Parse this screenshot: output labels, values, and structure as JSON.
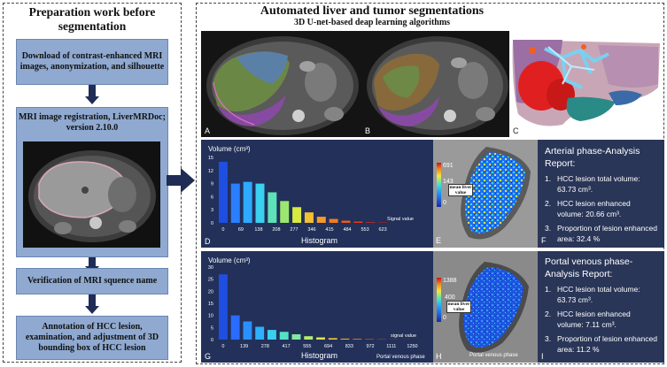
{
  "left": {
    "title": "Preparation work before segmentation",
    "steps": [
      "Download of contrast-enhanced MRI images, anonymization, and silhouette",
      "MRI image registration, LiverMRDoc; version 2.10.0",
      "Verification of MRI squence name",
      "Annotation of HCC lesion, examination, and adjustment of 3D bounding box of HCC lesion"
    ]
  },
  "right": {
    "title": "Automated liver and tumor segmentations",
    "subtitle": "3D U-net-based deap learning algorithms",
    "scan_labels": [
      "A",
      "B",
      "C"
    ]
  },
  "chart_data": [
    {
      "type": "bar",
      "panel": "D",
      "ylabel": "Volume (cm³)",
      "xlabel": "Histogram",
      "x_axis_note": "Signal value",
      "ylim": [
        0,
        15
      ],
      "yticks": [
        "0",
        "3",
        "6",
        "9",
        "12",
        "15"
      ],
      "xtick_labels": [
        "0",
        "69",
        "138",
        "208",
        "277",
        "346",
        "415",
        "484",
        "553",
        "623"
      ],
      "values": [
        14,
        9,
        9.4,
        9,
        7,
        5,
        3.6,
        2.4,
        1.4,
        0.9,
        0.5,
        0.3,
        0.15,
        0.1
      ],
      "colors": [
        "#1f4fe0",
        "#2a7fff",
        "#2eaaff",
        "#3ad0f0",
        "#5ee0b8",
        "#9ae870",
        "#d8ea40",
        "#f2c030",
        "#f59a26",
        "#f27a22",
        "#ee5a1e",
        "#e83c1a",
        "#dd2a16",
        "#cc1a12"
      ]
    },
    {
      "type": "bar",
      "panel": "G",
      "ylabel": "Volume (cm³)",
      "xlabel": "Histogram",
      "x_axis_note": "signal value",
      "footer_note": "Portal venous phase",
      "ylim": [
        0,
        30
      ],
      "yticks": [
        "0",
        "5",
        "10",
        "15",
        "20",
        "25",
        "30"
      ],
      "xtick_labels": [
        "0",
        "139",
        "278",
        "417",
        "555",
        "694",
        "833",
        "972",
        "1111",
        "1250"
      ],
      "values": [
        27,
        10,
        7.5,
        5.3,
        4,
        3.2,
        2.2,
        1.4,
        0.9,
        0.6,
        0.4,
        0.3,
        0.2,
        0.15,
        0.1,
        0.08,
        0.05
      ],
      "colors": [
        "#1f4fe0",
        "#2a6cff",
        "#2a8fff",
        "#2eb0ff",
        "#3acfef",
        "#55e0c6",
        "#80e8a0",
        "#b4ec70",
        "#e0e84a",
        "#f2c832",
        "#f4a42a",
        "#f28024",
        "#ee5e1e",
        "#e6401a",
        "#dc2a16",
        "#cc1c12",
        "#b81410"
      ]
    }
  ],
  "maps": [
    {
      "letter": "E",
      "scale_max": "691",
      "scale_mid": "143",
      "scale_min": "0",
      "mean_label": "mean liver value",
      "footer": ""
    },
    {
      "letter": "H",
      "scale_max": "1388",
      "scale_mid": "400",
      "scale_min": "0",
      "mean_label": "mean liver value",
      "footer": "Portal venous phase"
    }
  ],
  "reports": [
    {
      "letter": "F",
      "title": "Arterial phase-Analysis Report:",
      "items": [
        {
          "num": "1.",
          "text": "HCC lesion total volume: 63.73 cm³."
        },
        {
          "num": "2.",
          "text": "HCC lesion enhanced volume: 20.66 cm³."
        },
        {
          "num": "3.",
          "text": "Proportion of lesion enhanced area: 32.4 %"
        }
      ]
    },
    {
      "letter": "I",
      "title": "Portal venous phase-Analysis Report:",
      "items": [
        {
          "num": "1.",
          "text": "HCC lesion total volume: 63.73 cm³."
        },
        {
          "num": "2.",
          "text": "HCC lesion enhanced volume: 7.11 cm³."
        },
        {
          "num": "3.",
          "text": "Proportion of lesion enhanced area: 11.2 %"
        }
      ]
    }
  ],
  "colors": {
    "chart_bg": "#22305a",
    "report_bg": "#2a3658",
    "step_fill": "#8fa9d0",
    "arrow": "#1f2c55"
  }
}
